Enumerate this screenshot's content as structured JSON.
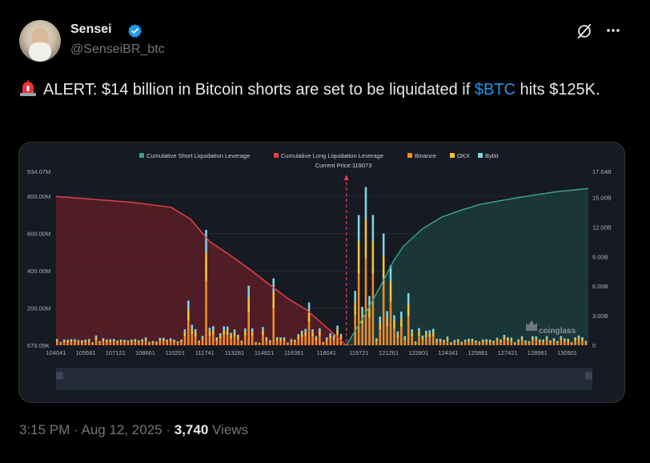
{
  "author": {
    "name": "Sensei",
    "handle": "@SenseiBR_btc"
  },
  "tweet": {
    "prefix": "ALERT: $14 billion in Bitcoin shorts are set to be liquidated if ",
    "cashtag": "$BTC",
    "suffix": " hits $125K."
  },
  "meta": {
    "time": "3:15 PM · Aug 12, 2025 · ",
    "views_count": "3,740",
    "views_label": " Views"
  },
  "colors": {
    "short_line": "#3e9e86",
    "long_line": "#e0404c",
    "binance": "#f08a2a",
    "okx": "#f3c23c",
    "bybit": "#7ed3e6",
    "cashtag": "#1d9bf0"
  },
  "chart_data": {
    "type": "bar",
    "legend": [
      "Cumulative Short Liquidation Leverage",
      "Cumulative Long Liquidation Leverage",
      "Binance",
      "OKX",
      "Bybit"
    ],
    "annotation": "Current Price:119073",
    "current_price": 119073,
    "watermark": "coinglass",
    "x_ticks": [
      "104041",
      "105581",
      "107121",
      "108661",
      "110201",
      "111741",
      "113281",
      "114821",
      "116361",
      "118041",
      "119721",
      "121261",
      "122801",
      "124341",
      "125881",
      "127421",
      "128961",
      "130501"
    ],
    "x_range": [
      104041,
      131600
    ],
    "y_left_ticks": [
      "934.07M",
      "800.00M",
      "600.00M",
      "400.00M",
      "200.00M",
      "679.09K"
    ],
    "y_left_range": [
      0,
      934.07
    ],
    "y_right_ticks": [
      "17.64B",
      "15.00B",
      "12.00B",
      "9.00B",
      "6.00B",
      "3.00B",
      "0"
    ],
    "y_right_range": [
      0,
      17.64
    ],
    "long_cumulative": {
      "x": [
        104041,
        106000,
        108000,
        110000,
        111000,
        112000,
        113000,
        114000,
        115000,
        116000,
        117000,
        118000,
        119073
      ],
      "y": [
        15.1,
        14.8,
        14.5,
        14.0,
        12.8,
        10.5,
        9.2,
        7.8,
        6.3,
        4.8,
        3.6,
        1.9,
        0
      ]
    },
    "short_cumulative": {
      "x": [
        119073,
        120000,
        120500,
        121000,
        121500,
        122000,
        123000,
        124000,
        125000,
        126000,
        128000,
        130000,
        131600
      ],
      "y": [
        0,
        3.0,
        4.8,
        6.6,
        8.5,
        10.0,
        11.8,
        13.0,
        13.7,
        14.3,
        15.0,
        15.6,
        15.9
      ]
    },
    "notable_bars_millions": [
      {
        "x": 111741,
        "value": 620
      },
      {
        "x": 110900,
        "value": 240
      },
      {
        "x": 113900,
        "value": 320
      },
      {
        "x": 115200,
        "value": 360
      },
      {
        "x": 117100,
        "value": 230
      },
      {
        "x": 119600,
        "value": 700
      },
      {
        "x": 120000,
        "value": 850
      },
      {
        "x": 120400,
        "value": 700
      },
      {
        "x": 120900,
        "value": 600
      },
      {
        "x": 121300,
        "value": 430
      },
      {
        "x": 122300,
        "value": 280
      }
    ]
  }
}
